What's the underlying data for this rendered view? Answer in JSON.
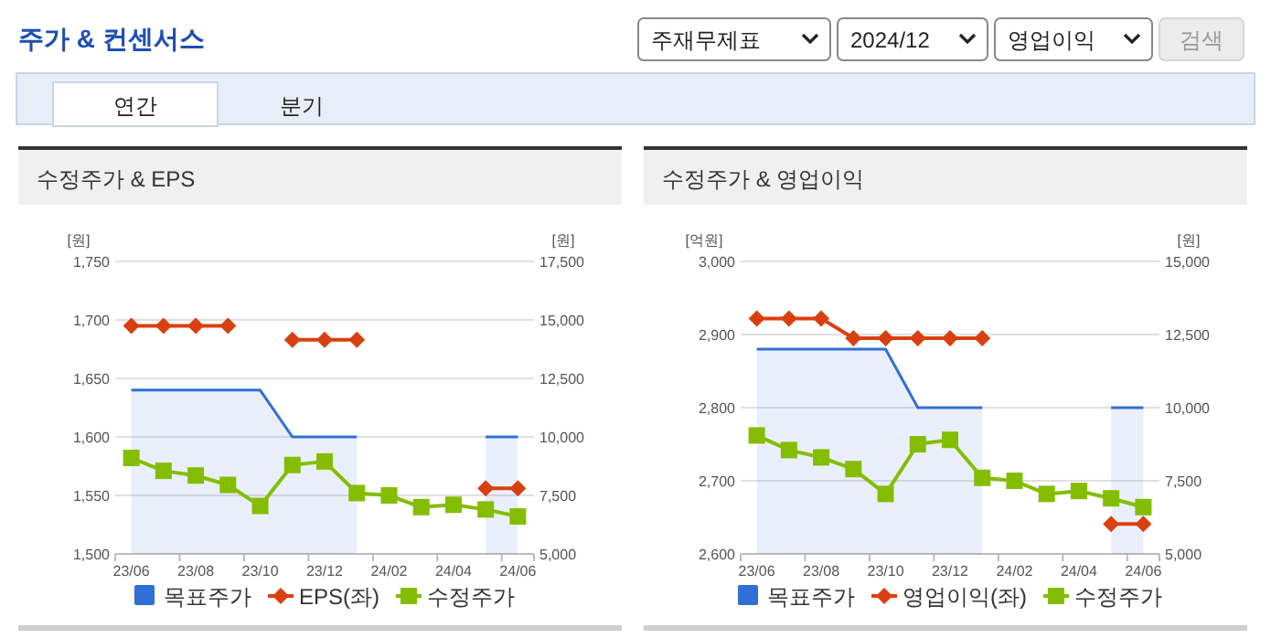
{
  "chart_data": [
    {
      "type": "other",
      "title": "주가 & 컨센서스",
      "annotations": [
        "주재무제표",
        "2024/12",
        "영업이익",
        "검색",
        "연간",
        "분기"
      ]
    },
    {
      "type": "line",
      "title": "수정주가 & EPS",
      "categories": [
        "23/06",
        null,
        "23/08",
        null,
        "23/10",
        null,
        "23/12",
        null,
        "24/02",
        null,
        "24/04",
        null,
        "24/06"
      ],
      "ylabel": "[원]",
      "y2label": "[원]",
      "ylim": [
        1500,
        1750
      ],
      "yticks": [
        {
          "value": 1500,
          "label": "1,500"
        },
        {
          "value": 1550,
          "label": "1,550"
        },
        {
          "value": 1600,
          "label": "1,600"
        },
        {
          "value": 1650,
          "label": "1,650"
        },
        {
          "value": 1700,
          "label": "1,700"
        },
        {
          "value": 1750,
          "label": "1,750"
        }
      ],
      "y2lim": [
        5000,
        17500
      ],
      "y2ticks": [
        {
          "value": 5000,
          "label": "5,000"
        },
        {
          "value": 7500,
          "label": "7,500"
        },
        {
          "value": 10000,
          "label": "10,000"
        },
        {
          "value": 12500,
          "label": "12,500"
        },
        {
          "value": 15000,
          "label": "15,000"
        },
        {
          "value": 17500,
          "label": "17,500"
        }
      ],
      "grid": "y",
      "legend": "bottom",
      "series": [
        {
          "name": "목표주가",
          "type": "area",
          "axis": "y2",
          "color": "#2f6fd6",
          "marker": "none",
          "values": [
            12000,
            12000,
            12000,
            12000,
            12000,
            10000,
            10000,
            10000,
            null,
            null,
            null,
            10000,
            10000
          ]
        },
        {
          "name": "EPS(좌)",
          "type": "line",
          "color": "#d9400f",
          "marker": "diamond",
          "values": [
            1695,
            1695,
            1695,
            1695,
            null,
            1683,
            1683,
            1683,
            null,
            null,
            null,
            1556,
            1556
          ]
        },
        {
          "name": "수정주가",
          "type": "line",
          "axis": "y2",
          "color": "#84bd00",
          "marker": "square",
          "values": [
            9100,
            8550,
            8350,
            7950,
            7050,
            8800,
            8950,
            7600,
            7500,
            7000,
            7100,
            6900,
            6600
          ]
        }
      ]
    },
    {
      "type": "line",
      "title": "수정주가 & 영업이익",
      "categories": [
        "23/06",
        null,
        "23/08",
        null,
        "23/10",
        null,
        "23/12",
        null,
        "24/02",
        null,
        "24/04",
        null,
        "24/06"
      ],
      "ylabel": "[억원]",
      "y2label": "[원]",
      "ylim": [
        2600,
        3000
      ],
      "yticks": [
        {
          "value": 2600,
          "label": "2,600"
        },
        {
          "value": 2700,
          "label": "2,700"
        },
        {
          "value": 2800,
          "label": "2,800"
        },
        {
          "value": 2900,
          "label": "2,900"
        },
        {
          "value": 3000,
          "label": "3,000"
        }
      ],
      "y2lim": [
        5000,
        15000
      ],
      "y2ticks": [
        {
          "value": 5000,
          "label": "5,000"
        },
        {
          "value": 7500,
          "label": "7,500"
        },
        {
          "value": 10000,
          "label": "10,000"
        },
        {
          "value": 12500,
          "label": "12,500"
        },
        {
          "value": 15000,
          "label": "15,000"
        }
      ],
      "grid": "y",
      "legend": "bottom",
      "series": [
        {
          "name": "목표주가",
          "type": "area",
          "axis": "y2",
          "color": "#2f6fd6",
          "marker": "none",
          "values": [
            12000,
            12000,
            12000,
            12000,
            12000,
            10000,
            10000,
            10000,
            null,
            null,
            null,
            10000,
            10000
          ]
        },
        {
          "name": "영업이익(좌)",
          "type": "line",
          "color": "#d9400f",
          "marker": "diamond",
          "values": [
            2922,
            2922,
            2922,
            2895,
            2895,
            2895,
            2895,
            2895,
            null,
            null,
            null,
            2641,
            2641
          ]
        },
        {
          "name": "수정주가",
          "type": "line",
          "axis": "y2",
          "color": "#84bd00",
          "marker": "square",
          "values": [
            9050,
            8550,
            8300,
            7900,
            7050,
            8750,
            8900,
            7600,
            7500,
            7050,
            7150,
            6900,
            6600
          ]
        }
      ]
    }
  ]
}
